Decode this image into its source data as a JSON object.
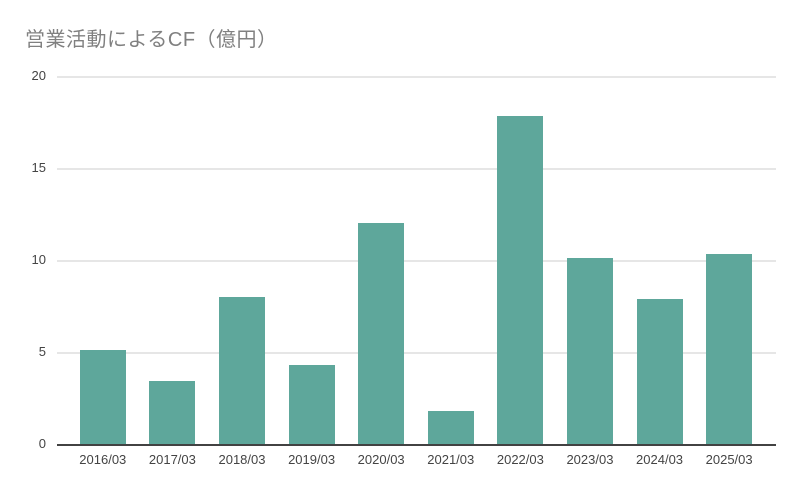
{
  "chart_data": {
    "type": "bar",
    "title": "営業活動によるCF（億円）",
    "categories": [
      "2016/03",
      "2017/03",
      "2018/03",
      "2019/03",
      "2020/03",
      "2021/03",
      "2022/03",
      "2023/03",
      "2024/03",
      "2025/03"
    ],
    "values": [
      5.1,
      3.4,
      8.0,
      4.3,
      12.0,
      1.8,
      17.8,
      10.1,
      7.9,
      10.3
    ],
    "xlabel": "",
    "ylabel": "",
    "ylim": [
      0,
      20
    ],
    "yticks": [
      0,
      5,
      10,
      15,
      20
    ],
    "grid": true,
    "legend": "none",
    "colors": {
      "bar": "#5ea79b",
      "gridline": "#e6e6e6",
      "axis_line": "#424242",
      "tick_label": "#444444",
      "title": "#808080",
      "background": "#ffffff"
    }
  }
}
